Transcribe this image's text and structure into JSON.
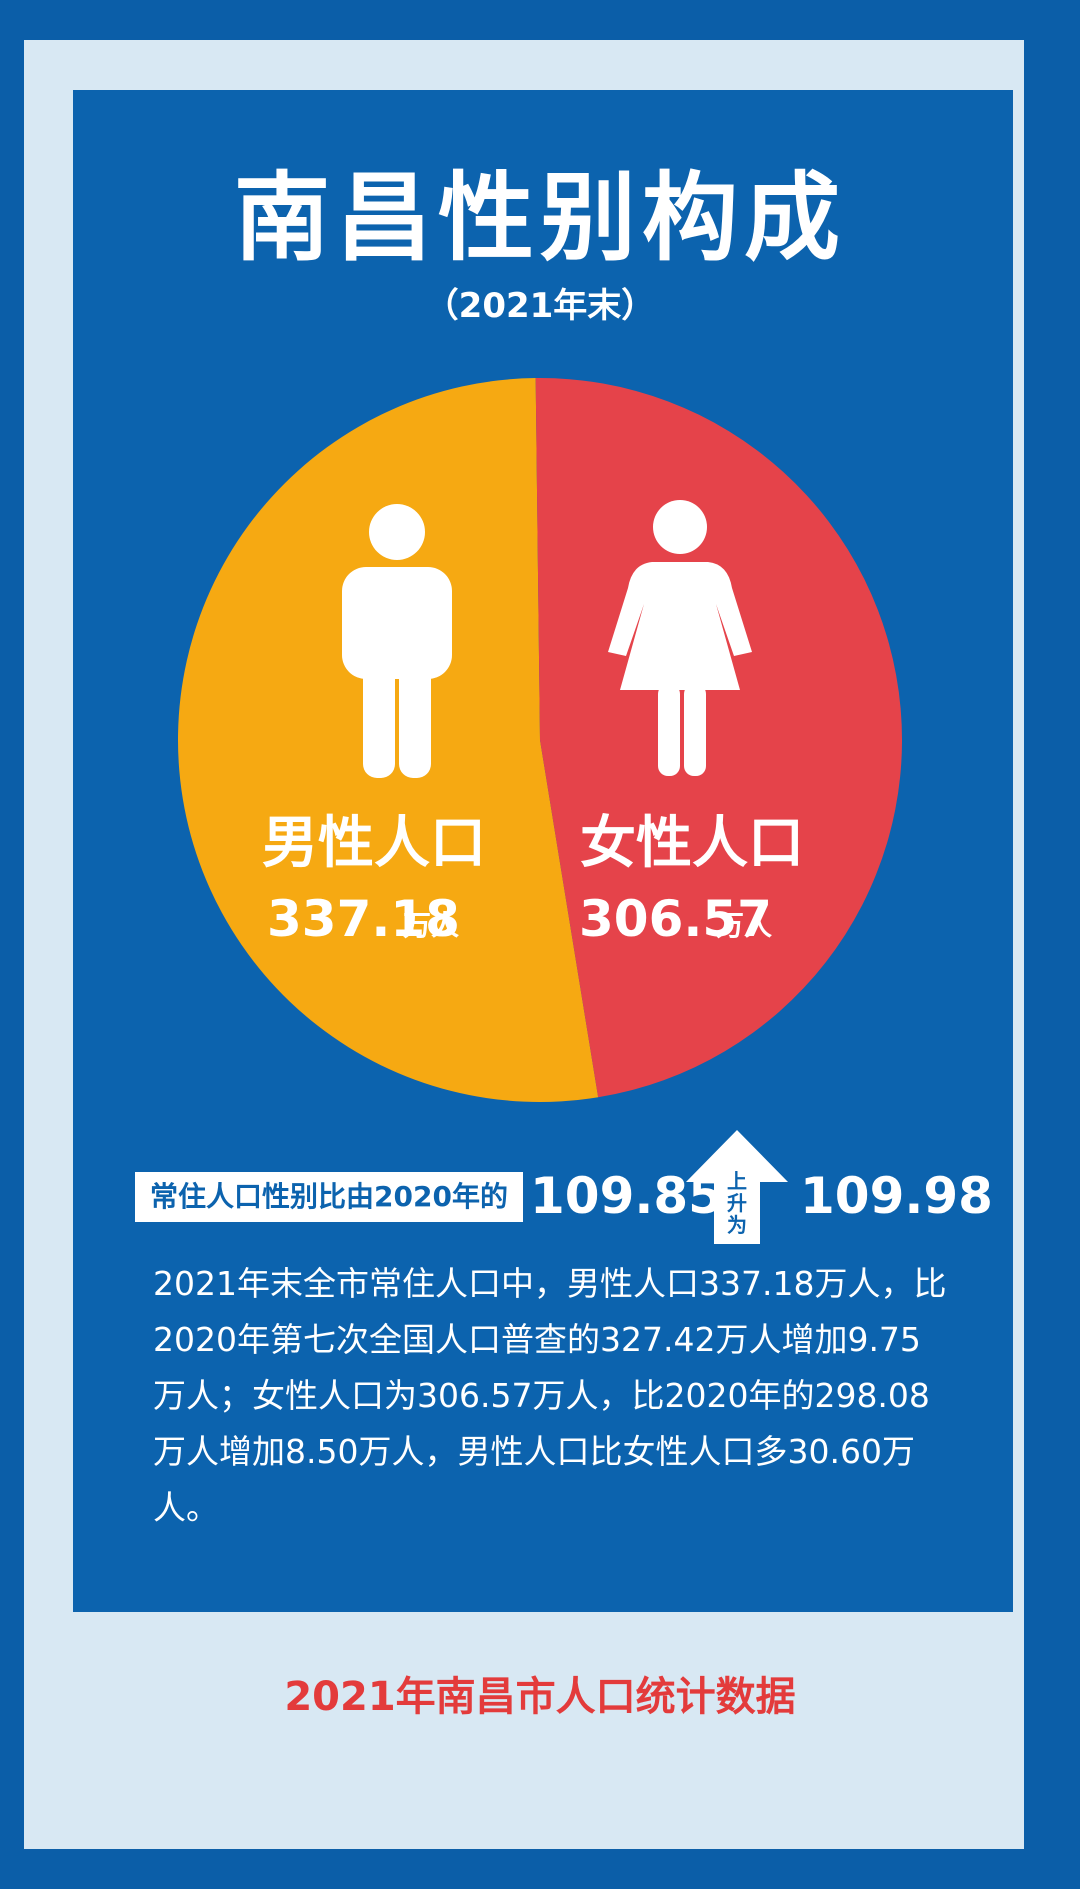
{
  "title": "南昌性别构成",
  "subtitle": "（2021年末）",
  "colors": {
    "male": "#f6a912",
    "female": "#e5434a",
    "panel": "#0c63ae",
    "outer_border": "#0b5ea8",
    "frame": "#d8e8f3",
    "footer": "#e33b3b"
  },
  "chart_data": {
    "type": "pie",
    "title": "南昌性别构成",
    "unit": "万人",
    "slices": [
      {
        "label": "男性人口",
        "value": 337.18,
        "value_text": "337.18",
        "unit": "万人",
        "color": "#f6a912"
      },
      {
        "label": "女性人口",
        "value": 306.57,
        "value_text": "306.57",
        "unit": "万人",
        "color": "#e5434a"
      }
    ]
  },
  "icons": [
    "male-figure-icon",
    "female-figure-icon",
    "up-arrow-icon"
  ],
  "ratio": {
    "label": "常住人口性别比由2020年的",
    "from": "109.85",
    "arrow_text": "上升为",
    "to": "109.98"
  },
  "description": "2021年末全市常住人口中，男性人口337.18万人，比2020年第七次全国人口普查的327.42万人增加9.75万人；女性人口为306.57万人，比2020年的298.08万人增加8.50万人，男性人口比女性人口多30.60万人。",
  "footer": "2021年南昌市人口统计数据"
}
